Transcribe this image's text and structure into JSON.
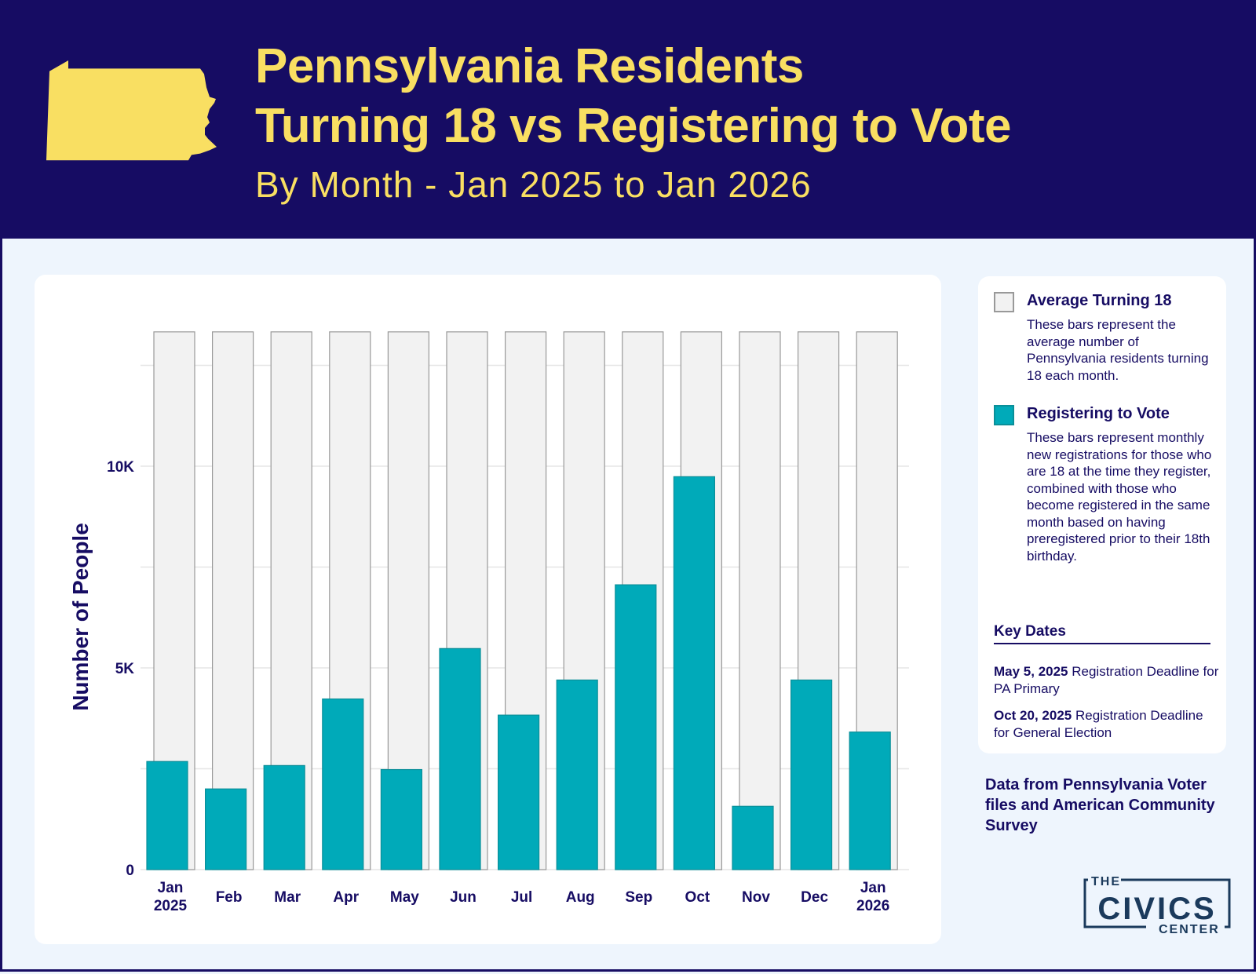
{
  "header": {
    "title_line1": "Pennsylvania Residents",
    "title_line2": "Turning 18 vs Registering to Vote",
    "subtitle": "By Month - Jan 2025 to Jan 2026"
  },
  "colors": {
    "navy": "#160c63",
    "yellow": "#f9df62",
    "teal": "#00aab9",
    "gray": "#f2f2f2"
  },
  "chart_data": {
    "type": "bar",
    "ylabel": "Number of People",
    "ylim": [
      0,
      13333
    ],
    "yticks": [
      {
        "v": 0,
        "label": "0"
      },
      {
        "v": 5000,
        "label": "5K"
      },
      {
        "v": 10000,
        "label": "10K"
      }
    ],
    "grid": true,
    "categories": [
      [
        "Jan",
        "2025"
      ],
      [
        "Feb"
      ],
      [
        "Mar"
      ],
      [
        "Apr"
      ],
      [
        "May"
      ],
      [
        "Jun"
      ],
      [
        "Jul"
      ],
      [
        "Aug"
      ],
      [
        "Sep"
      ],
      [
        "Oct"
      ],
      [
        "Nov"
      ],
      [
        "Dec"
      ],
      [
        "Jan",
        "2026"
      ]
    ],
    "series": [
      {
        "name": "Average Turning 18",
        "color": "#f2f2f2",
        "values": [
          13330,
          13330,
          13330,
          13330,
          13330,
          13330,
          13330,
          13330,
          13330,
          13330,
          13330,
          13330,
          13330
        ]
      },
      {
        "name": "Registering to Vote",
        "color": "#00aab9",
        "values": [
          2680,
          2000,
          2580,
          4230,
          2480,
          5480,
          3830,
          4700,
          7060,
          9740,
          1570,
          4700,
          3410
        ]
      }
    ],
    "legend": "right"
  },
  "legend": {
    "items": [
      {
        "label": "Average Turning 18",
        "desc": "These bars represent the average number of Pennsylvania residents turning 18 each month."
      },
      {
        "label": "Registering to Vote",
        "desc": "These bars represent monthly new registrations for those who are 18 at the time they register, combined with those who become registered in the same month based on having preregistered prior to their 18th birthday."
      }
    ],
    "key_dates_title": "Key Dates",
    "key_dates": [
      {
        "date": "May 5, 2025",
        "text": "Registration Deadline for PA Primary"
      },
      {
        "date": "Oct 20, 2025",
        "text": "Registration Deadline for General Election"
      }
    ]
  },
  "source": "Data from Pennsylvania Voter files and American Community Survey",
  "logo": {
    "the": "THE",
    "civics": "CIVICS",
    "center": "CENTER"
  }
}
